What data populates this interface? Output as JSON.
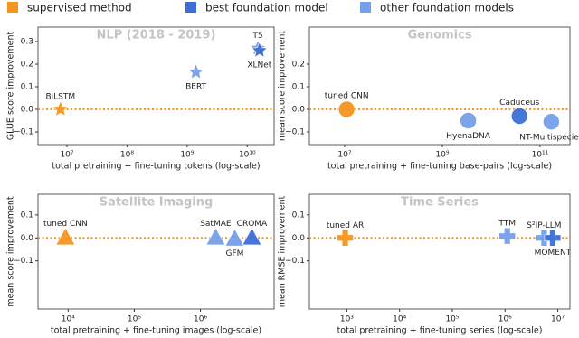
{
  "legend": [
    {
      "name": "supervised method",
      "color": "#f7941d"
    },
    {
      "name": "best foundation model",
      "color": "#3d6fd6"
    },
    {
      "name": "other foundation models",
      "color": "#76a0ea"
    }
  ],
  "chart_data": [
    {
      "type": "scatter",
      "title": "NLP (2018 - 2019)",
      "marker": "star",
      "log_x": true,
      "x_label": "total pretraining + fine-tuning tokens (log-scale)",
      "y_label": "GLUE score improvement",
      "xlim": [
        3300000,
        28000000000
      ],
      "ylim": [
        -0.156,
        0.364
      ],
      "xticks": [
        {
          "value": 10000000,
          "label": "10⁷"
        },
        {
          "value": 100000000,
          "label": "10⁸"
        },
        {
          "value": 1000000000,
          "label": "10⁹"
        },
        {
          "value": 10000000000,
          "label": "10¹⁰"
        }
      ],
      "yticks": [
        {
          "value": -0.1,
          "label": "−0.1"
        },
        {
          "value": 0.0,
          "label": "0.0"
        },
        0.1,
        0.2,
        0.3
      ],
      "points": [
        {
          "label": "BiLSTM",
          "x": 7800000,
          "y": 0.0,
          "color": "#f7941d"
        },
        {
          "label": "BERT",
          "x": 1400000000,
          "y": 0.165,
          "color": "#76a0ea"
        },
        {
          "label": "T5",
          "x": 15000000000,
          "y": 0.27,
          "color": "#76a0ea"
        },
        {
          "label": "XLNet",
          "x": 16000000000,
          "y": 0.26,
          "color": "#3d6fd6"
        }
      ]
    },
    {
      "type": "scatter",
      "title": "Genomics",
      "marker": "circle",
      "log_x": true,
      "x_label": "total pretraining + fine-tuning base-pairs (log-scale)",
      "y_label": "mean score improvement",
      "xlim": [
        1900000,
        410000000000
      ],
      "ylim": [
        -0.156,
        0.364
      ],
      "xticks": [
        {
          "value": 10000000,
          "label": "10⁷"
        },
        {
          "value": 1000000000,
          "label": "10⁹"
        },
        {
          "value": 100000000000,
          "label": "10¹¹"
        }
      ],
      "yticks": [
        {
          "value": -0.1,
          "label": "−0.1"
        },
        {
          "value": 0.0,
          "label": "0.0"
        },
        0.1,
        0.2
      ],
      "points": [
        {
          "label": "tuned CNN",
          "x": 11000000,
          "y": 0.0,
          "color": "#f7941d"
        },
        {
          "label": "HyenaDNA",
          "x": 3400000000,
          "y": -0.05,
          "color": "#76a0ea"
        },
        {
          "label": "Caduceus",
          "x": 38000000000,
          "y": -0.03,
          "color": "#3d6fd6"
        },
        {
          "label": "NT-Multispecies",
          "x": 170000000000,
          "y": -0.055,
          "color": "#76a0ea"
        }
      ]
    },
    {
      "type": "scatter",
      "title": "Satellite Imaging",
      "marker": "triangle",
      "log_x": true,
      "x_label": "total pretraining + fine-tuning images (log-scale)",
      "y_label": "mean score improvement",
      "xlim": [
        3500,
        13000000
      ],
      "ylim": [
        -0.31,
        0.19
      ],
      "xticks": [
        {
          "value": 10000,
          "label": "10⁴"
        },
        {
          "value": 100000,
          "label": "10⁵"
        },
        {
          "value": 1000000,
          "label": "10⁶"
        }
      ],
      "yticks": [
        {
          "value": -0.1,
          "label": "−0.1"
        },
        {
          "value": 0.0,
          "label": "0.0"
        },
        0.1
      ],
      "points": [
        {
          "label": "tuned CNN",
          "x": 9100,
          "y": 0.0,
          "color": "#f7941d"
        },
        {
          "label": "SatMAE",
          "x": 1700000,
          "y": 0.0,
          "color": "#76a0ea"
        },
        {
          "label": "GFM",
          "x": 3300000,
          "y": -0.005,
          "color": "#76a0ea"
        },
        {
          "label": "CROMA",
          "x": 6000000,
          "y": 0.0,
          "color": "#3d6fd6"
        }
      ]
    },
    {
      "type": "scatter",
      "title": "Time Series",
      "marker": "plus",
      "log_x": true,
      "x_label": "total pretraining + fine-tuning series (log-scale)",
      "y_label": "mean RMSE improvement",
      "xlim": [
        195,
        17000000
      ],
      "ylim": [
        -0.31,
        0.19
      ],
      "xticks": [
        {
          "value": 1000,
          "label": "10³"
        },
        {
          "value": 10000,
          "label": "10⁴"
        },
        {
          "value": 100000,
          "label": "10⁵"
        },
        {
          "value": 1000000,
          "label": "10⁶"
        },
        {
          "value": 10000000,
          "label": "10⁷"
        }
      ],
      "yticks": [
        {
          "value": -0.1,
          "label": "−0.1"
        },
        {
          "value": 0.0,
          "label": "0.0"
        },
        0.1
      ],
      "points": [
        {
          "label": "tuned AR",
          "x": 930,
          "y": 0.0,
          "color": "#f7941d"
        },
        {
          "label": "TTM",
          "x": 1100000,
          "y": 0.008,
          "color": "#76a0ea"
        },
        {
          "label": "S²IP-LLM",
          "x": 5500000,
          "y": 0.0,
          "color": "#76a0ea"
        },
        {
          "label": "MOMENT",
          "x": 8000000,
          "y": 0.0,
          "color": "#3d6fd6"
        }
      ]
    }
  ]
}
